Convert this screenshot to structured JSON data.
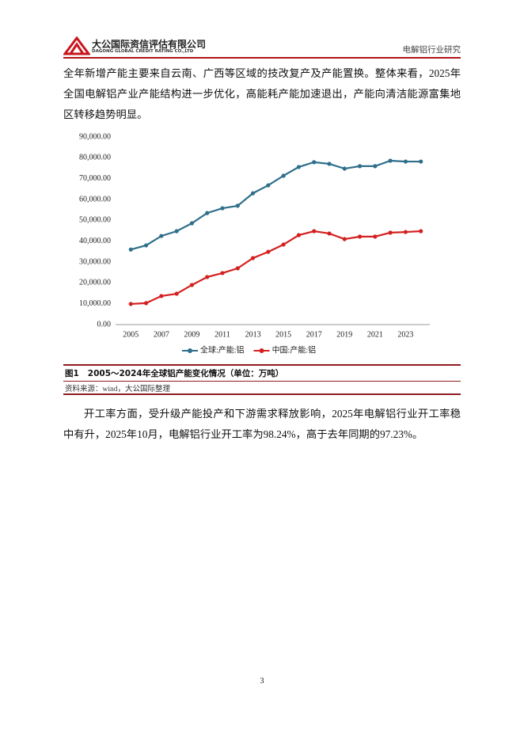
{
  "header": {
    "company_cn": "大公国际资信评估有限公司",
    "company_en": "DAGONG GLOBAL CREDIT RATING CO.,LTD",
    "section": "电解铝行业研究"
  },
  "paragraphs": [
    "全年新增产能主要来自云南、广西等区域的技改复产及产能置换。整体来看，2025年全国电解铝产业产能结构进一步优化，高能耗产能加速退出，产能向清洁能源富集地区转移趋势明显。",
    "开工率方面，受升级产能投产和下游需求释放影响，2025年电解铝行业开工率稳中有升，2025年10月，电解铝行业开工率为98.24%，高于去年同期的97.23%。"
  ],
  "chart_data": {
    "type": "line",
    "x": [
      2005,
      2006,
      2007,
      2008,
      2009,
      2010,
      2011,
      2012,
      2013,
      2014,
      2015,
      2016,
      2017,
      2018,
      2019,
      2020,
      2021,
      2022,
      2023,
      2024
    ],
    "xlim": [
      2004,
      2025
    ],
    "xticks": [
      2005,
      2007,
      2009,
      2011,
      2013,
      2015,
      2017,
      2019,
      2021,
      2023
    ],
    "ylim": [
      0,
      90000
    ],
    "yticks": [
      {
        "value": 0,
        "label": "0.00"
      },
      {
        "value": 10000,
        "label": "10,000.00"
      },
      {
        "value": 20000,
        "label": "20,000.00"
      },
      {
        "value": 30000,
        "label": "30,000.00"
      },
      {
        "value": 40000,
        "label": "40,000.00"
      },
      {
        "value": 50000,
        "label": "50,000.00"
      },
      {
        "value": 60000,
        "label": "60,000.00"
      },
      {
        "value": 70000,
        "label": "70,000.00"
      },
      {
        "value": 80000,
        "label": "80,000.00"
      },
      {
        "value": 90000,
        "label": "90,000.00"
      }
    ],
    "grid": false,
    "legend": "bottom",
    "series": [
      {
        "name": "全球:产能:铝",
        "color": "#2f6f8a",
        "values": [
          36000,
          38000,
          42500,
          44800,
          48600,
          53500,
          55800,
          57000,
          63000,
          66800,
          71400,
          75600,
          77900,
          77100,
          74800,
          76000,
          76000,
          78600,
          78200,
          78200
        ]
      },
      {
        "name": "中国:产能:铝",
        "color": "#d42020",
        "values": [
          9900,
          10300,
          13700,
          14800,
          19000,
          22800,
          24700,
          27000,
          31900,
          34900,
          38400,
          42900,
          44800,
          43700,
          41000,
          42200,
          42200,
          44100,
          44400,
          44800
        ]
      }
    ]
  },
  "figure": {
    "caption": "图1   2005～2024年全球铝产能变化情况（单位：万吨）",
    "source": "资料来源：wind，大公国际整理"
  },
  "page_number": 3
}
